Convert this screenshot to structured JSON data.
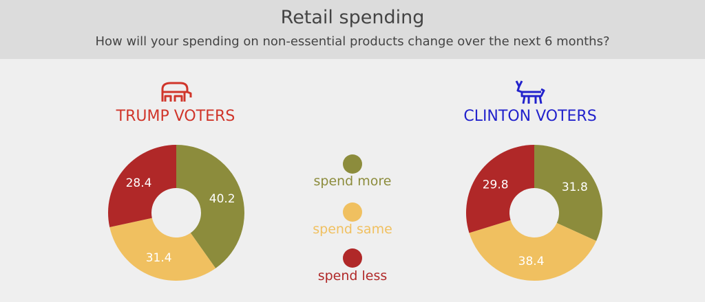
{
  "header": {
    "title": "Retail spending",
    "subtitle": "How will your spending on non-essential products change over the next 6 months?"
  },
  "colors": {
    "spend_more": "#8c8c3c",
    "spend_same": "#f0c060",
    "spend_less": "#b02828",
    "trump": "#d0352a",
    "clinton": "#2222cc"
  },
  "icons": {
    "trump": "elephant-icon",
    "clinton": "donkey-icon"
  },
  "legend": [
    {
      "key": "spend_more",
      "label": "spend more"
    },
    {
      "key": "spend_same",
      "label": "spend same"
    },
    {
      "key": "spend_less",
      "label": "spend less"
    }
  ],
  "chart_data": [
    {
      "type": "pie",
      "title": "TRUMP VOTERS",
      "categories": [
        "spend more",
        "spend same",
        "spend less"
      ],
      "values": [
        40.2,
        31.4,
        28.4
      ]
    },
    {
      "type": "pie",
      "title": "CLINTON VOTERS",
      "categories": [
        "spend more",
        "spend same",
        "spend less"
      ],
      "values": [
        31.8,
        38.4,
        29.8
      ]
    }
  ]
}
